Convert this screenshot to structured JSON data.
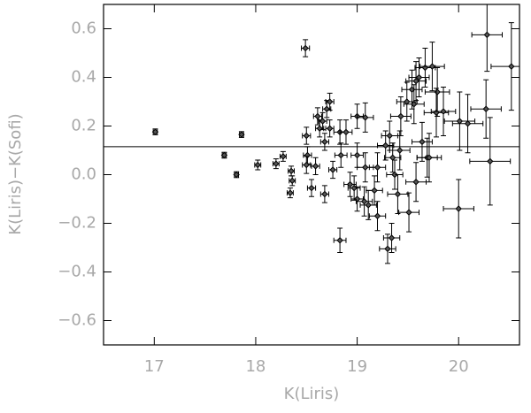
{
  "chart_data": {
    "type": "scatter",
    "x_label": "K(Liris)",
    "y_label": "K(Liris)−K(Sofi)",
    "xlim": [
      16.5,
      20.6
    ],
    "ylim": [
      -0.7,
      0.7
    ],
    "xticks": [
      17,
      18,
      19,
      20
    ],
    "yticks": [
      {
        "value": -0.6,
        "label": "−0.6"
      },
      {
        "value": -0.4,
        "label": "−0.4"
      },
      {
        "value": -0.2,
        "label": "−0.2"
      },
      {
        "value": 0,
        "label": "0.0"
      },
      0.2,
      0.4,
      0.6
    ],
    "hline": 0.115,
    "color": "#000000",
    "x": [
      17.01,
      17.69,
      17.81,
      17.86,
      18.02,
      18.2,
      18.27,
      18.35,
      18.36,
      18.34,
      18.49,
      18.5,
      18.51,
      18.5,
      18.55,
      18.59,
      18.61,
      18.63,
      18.66,
      18.7,
      18.73,
      18.68,
      18.68,
      18.76,
      18.73,
      18.83,
      18.89,
      18.84,
      18.83,
      18.93,
      18.97,
      19.0,
      19.0,
      19.0,
      19.08,
      19.08,
      19.07,
      19.11,
      19.17,
      19.2,
      19.2,
      19.28,
      19.3,
      19.34,
      19.35,
      19.32,
      19.37,
      19.4,
      19.42,
      19.43,
      19.49,
      19.51,
      19.54,
      19.56,
      19.58,
      19.61,
      19.58,
      19.64,
      19.67,
      19.69,
      19.71,
      19.74,
      19.79,
      19.78,
      19.85,
      20.0,
      20.01,
      20.09,
      20.28,
      20.27,
      20.31,
      20.52
    ],
    "values": [
      0.176,
      0.08,
      0,
      0.165,
      0.04,
      0.045,
      0.075,
      0.015,
      -0.025,
      -0.075,
      0.52,
      0.16,
      0.08,
      0.04,
      -0.055,
      0.035,
      0.24,
      0.19,
      0.22,
      0.27,
      0.3,
      0.135,
      -0.08,
      0.02,
      0.19,
      0.175,
      0.175,
      0.08,
      -0.27,
      -0.04,
      -0.055,
      -0.1,
      0.08,
      0.24,
      0.235,
      0.03,
      -0.11,
      -0.125,
      -0.065,
      -0.17,
      0.03,
      0.12,
      -0.305,
      -0.26,
      0.07,
      0.16,
      0,
      -0.08,
      0.1,
      0.24,
      0.3,
      -0.155,
      0.35,
      0.29,
      0.385,
      0.4,
      -0.03,
      0.135,
      0.44,
      0.07,
      0.07,
      0.445,
      0.34,
      0.255,
      0.26,
      -0.14,
      0.22,
      0.21,
      0.575,
      0.27,
      0.055,
      0.445
    ],
    "xerr": [
      0.02,
      0.02,
      0.02,
      0.02,
      0.03,
      0.03,
      0.03,
      0.03,
      0.03,
      0.03,
      0.04,
      0.04,
      0.04,
      0.04,
      0.04,
      0.04,
      0.04,
      0.04,
      0.04,
      0.04,
      0.04,
      0.04,
      0.04,
      0.04,
      0.04,
      0.06,
      0.06,
      0.06,
      0.06,
      0.06,
      0.06,
      0.06,
      0.06,
      0.06,
      0.08,
      0.08,
      0.08,
      0.08,
      0.08,
      0.08,
      0.08,
      0.08,
      0.08,
      0.08,
      0.08,
      0.08,
      0.08,
      0.1,
      0.1,
      0.1,
      0.1,
      0.1,
      0.1,
      0.1,
      0.1,
      0.1,
      0.1,
      0.1,
      0.1,
      0.1,
      0.12,
      0.12,
      0.12,
      0.12,
      0.12,
      0.15,
      0.15,
      0.15,
      0.15,
      0.15,
      0.2,
      0.2
    ],
    "yerr": [
      0.012,
      0.012,
      0.012,
      0.012,
      0.02,
      0.02,
      0.02,
      0.02,
      0.02,
      0.02,
      0.035,
      0.035,
      0.035,
      0.035,
      0.035,
      0.035,
      0.035,
      0.035,
      0.035,
      0.035,
      0.035,
      0.035,
      0.035,
      0.035,
      0.035,
      0.05,
      0.05,
      0.05,
      0.05,
      0.05,
      0.05,
      0.05,
      0.05,
      0.05,
      0.06,
      0.06,
      0.06,
      0.06,
      0.06,
      0.06,
      0.06,
      0.06,
      0.06,
      0.06,
      0.06,
      0.06,
      0.06,
      0.08,
      0.08,
      0.08,
      0.08,
      0.08,
      0.08,
      0.08,
      0.08,
      0.08,
      0.08,
      0.08,
      0.08,
      0.08,
      0.1,
      0.1,
      0.1,
      0.1,
      0.1,
      0.12,
      0.12,
      0.12,
      0.15,
      0.12,
      0.18,
      0.18
    ]
  }
}
